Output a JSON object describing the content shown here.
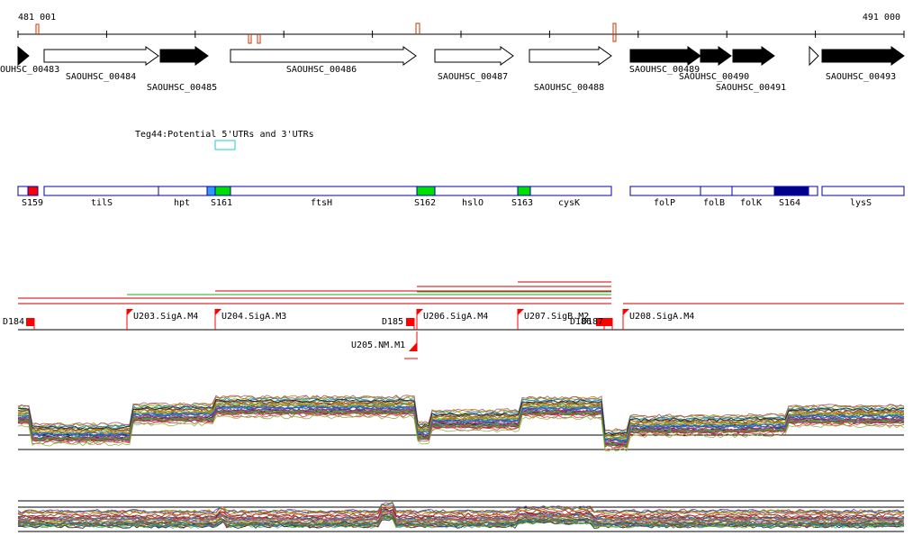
{
  "coordinates": {
    "start_label": "481 001",
    "end_label": "491 000"
  },
  "colors": {
    "gene_strong": "#000000",
    "gene_weak": "#ffffff",
    "operon_outline": "#0000aa",
    "srna": "#ff0000",
    "blue_box": "#00008b",
    "light_blue": "#3399ff",
    "green": "#00e000",
    "teg_box": "#22cccc",
    "promoter": "#ff0000",
    "transcript_red": "#cc0000",
    "transcript_green": "#22aa22"
  },
  "genes": [
    {
      "label": "OUHSC_00483",
      "strand": "+",
      "filled": true
    },
    {
      "label": "SAOUHSC_00484",
      "strand": "+",
      "filled": false
    },
    {
      "label": "SAOUHSC_00485",
      "strand": "+",
      "filled": true
    },
    {
      "label": "SAOUHSC_00486",
      "strand": "+",
      "filled": false
    },
    {
      "label": "SAOUHSC_00487",
      "strand": "+",
      "filled": false
    },
    {
      "label": "SAOUHSC_00488",
      "strand": "+",
      "filled": false
    },
    {
      "label": "SAOUHSC_00489",
      "strand": "+",
      "filled": true
    },
    {
      "label": "SAOUHSC_00490",
      "strand": "+",
      "filled": true
    },
    {
      "label": "SAOUHSC_00491",
      "strand": "+",
      "filled": true
    },
    {
      "label": "",
      "strand": "+",
      "filled": false
    },
    {
      "label": "SAOUHSC_00493",
      "strand": "+",
      "filled": true
    }
  ],
  "teg": {
    "label": "Teg44:Potential 5'UTRs and 3'UTRs"
  },
  "annotation_boxes": [
    {
      "label": "S159"
    },
    {
      "label": "tilS"
    },
    {
      "label": "hpt"
    },
    {
      "label": "S161"
    },
    {
      "label": "ftsH"
    },
    {
      "label": "S162"
    },
    {
      "label": "hslO"
    },
    {
      "label": "S163"
    },
    {
      "label": "cysK"
    },
    {
      "label": "folP"
    },
    {
      "label": "folB"
    },
    {
      "label": "folK"
    },
    {
      "label": "S164"
    },
    {
      "label": "lysS"
    }
  ],
  "promoters": [
    {
      "label": "D184"
    },
    {
      "label": "U203.SigA.M4"
    },
    {
      "label": "U204.SigA.M3"
    },
    {
      "label": "D185"
    },
    {
      "label": "U206.SigA.M4"
    },
    {
      "label": "U207.SigB.M2"
    },
    {
      "label": "D186"
    },
    {
      "label": "D187"
    },
    {
      "label": "U208.SigA.M4"
    },
    {
      "label": "U205.NM.M1"
    }
  ],
  "expression_panels": [
    {
      "name": "tiling-expression-upper",
      "track_count": 40
    },
    {
      "name": "tiling-expression-lower",
      "track_count": 30
    }
  ]
}
